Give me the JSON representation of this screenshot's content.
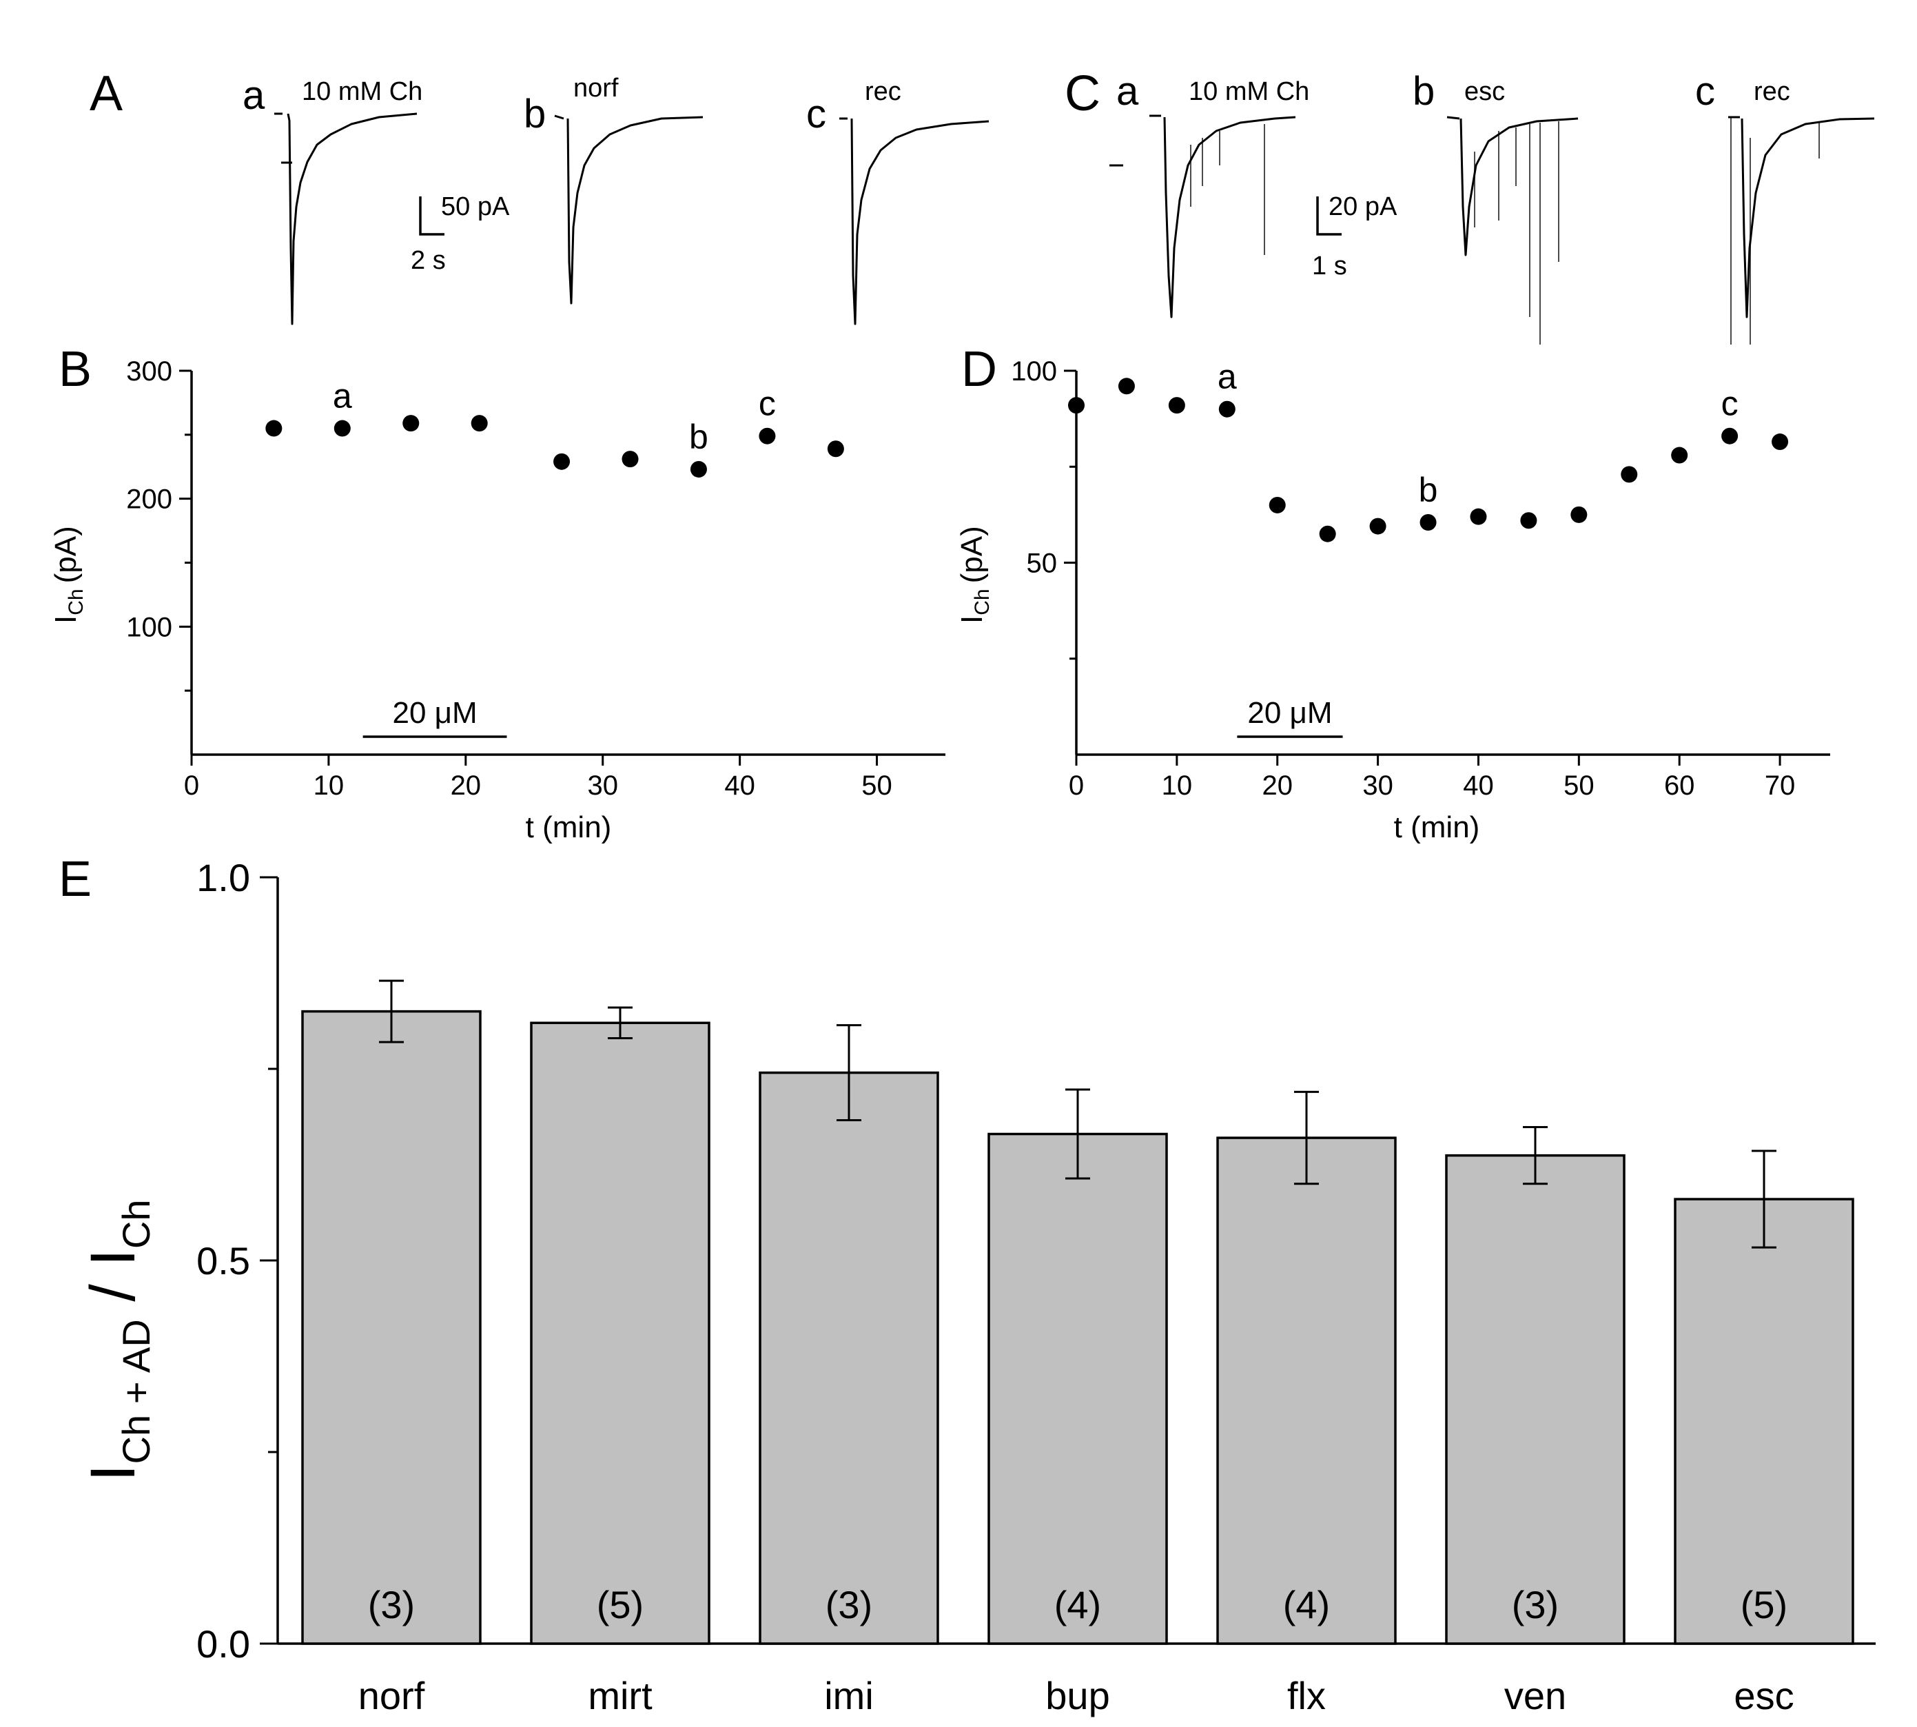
{
  "panels": {
    "A": {
      "letter": "A",
      "traces": [
        {
          "id": "a",
          "label": "a",
          "drug": "10 mM Ch"
        },
        {
          "id": "b",
          "label": "b",
          "drug": "norf"
        },
        {
          "id": "c",
          "label": "c",
          "drug": "rec"
        }
      ],
      "scale_y": "50 pA",
      "scale_x": "2 s"
    },
    "C": {
      "letter": "C",
      "traces": [
        {
          "id": "a",
          "label": "a",
          "drug": "10 mM Ch"
        },
        {
          "id": "b",
          "label": "b",
          "drug": "esc"
        },
        {
          "id": "c",
          "label": "c",
          "drug": "rec"
        }
      ],
      "scale_y": "20 pA",
      "scale_x": "1 s"
    }
  },
  "chart_data": [
    {
      "panel": "B",
      "type": "scatter",
      "xlabel": "t (min)",
      "ylabel_main": "I",
      "ylabel_sub": "Ch",
      "ylabel_unit": "(pA)",
      "xlim": [
        0,
        55
      ],
      "ylim": [
        0,
        300
      ],
      "xticks": [
        0,
        10,
        20,
        30,
        40,
        50
      ],
      "yticks": [
        100,
        200,
        300
      ],
      "x": [
        6,
        11,
        16,
        21,
        27,
        32,
        37,
        42,
        47
      ],
      "y": [
        255,
        255,
        259,
        259,
        229,
        231,
        223,
        249,
        239
      ],
      "point_labels": [
        {
          "x": 11,
          "y": 255,
          "text": "a"
        },
        {
          "x": 37,
          "y": 223,
          "text": "b"
        },
        {
          "x": 42,
          "y": 249,
          "text": "c"
        }
      ],
      "application_bar": {
        "start": 12.5,
        "end": 23,
        "label": "20 μM"
      }
    },
    {
      "panel": "D",
      "type": "scatter",
      "xlabel": "t (min)",
      "ylabel_main": "I",
      "ylabel_sub": "Ch",
      "ylabel_unit": "(pA)",
      "xlim": [
        0,
        75
      ],
      "ylim": [
        0,
        100
      ],
      "xticks": [
        0,
        10,
        20,
        30,
        40,
        50,
        60,
        70
      ],
      "yticks": [
        50,
        100
      ],
      "x": [
        0,
        5,
        10,
        15,
        20,
        25,
        30,
        35,
        40,
        45,
        50,
        55,
        60,
        65,
        70
      ],
      "y": [
        91,
        96,
        91,
        90,
        65,
        57.5,
        59.5,
        60.5,
        62,
        61,
        62.5,
        73,
        78,
        83,
        81.5
      ],
      "point_labels": [
        {
          "x": 15,
          "y": 90,
          "text": "a"
        },
        {
          "x": 35,
          "y": 60.5,
          "text": "b"
        },
        {
          "x": 65,
          "y": 83,
          "text": "c"
        }
      ],
      "application_bar": {
        "start": 16,
        "end": 26.5,
        "label": "20 μM"
      }
    },
    {
      "panel": "E",
      "type": "bar",
      "categories": [
        "norf",
        "mirt",
        "imi",
        "bup",
        "flx",
        "ven",
        "esc"
      ],
      "values": [
        0.825,
        0.81,
        0.745,
        0.665,
        0.66,
        0.637,
        0.58
      ],
      "errors": [
        0.04,
        0.02,
        0.062,
        0.058,
        0.06,
        0.037,
        0.063
      ],
      "n_labels": [
        "(3)",
        "(5)",
        "(3)",
        "(4)",
        "(4)",
        "(3)",
        "(5)"
      ],
      "ylabel_main": "I",
      "ylabel_sub1": "Ch + AD",
      "ylabel_sep": " / I",
      "ylabel_sub2": "Ch",
      "ylim": [
        0,
        1.0
      ],
      "yticks": [
        0.0,
        0.5,
        1.0
      ],
      "ytick_labels": [
        "0.0",
        "0.5",
        "1.0"
      ]
    }
  ]
}
